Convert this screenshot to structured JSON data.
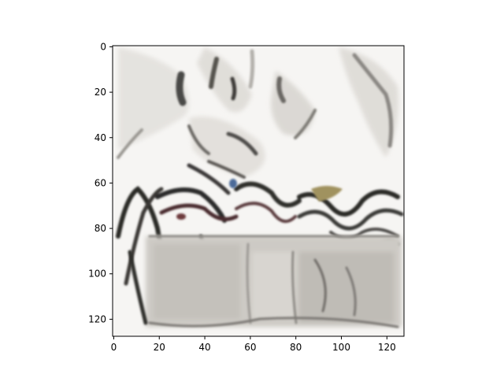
{
  "chart_data": {
    "type": "heatmap",
    "title": "",
    "xlabel": "",
    "ylabel": "",
    "xlim": [
      -0.5,
      127.5
    ],
    "ylim": [
      127.5,
      -0.5
    ],
    "y_inverted": true,
    "grid": false,
    "legend": "none",
    "x_ticks": [
      0,
      20,
      40,
      60,
      80,
      100,
      120
    ],
    "y_ticks": [
      0,
      20,
      40,
      60,
      80,
      100,
      120
    ],
    "image_size": [
      128,
      128
    ],
    "content": "generated 128x128 image: mostly white/grey sketch-like textures on top, dark wavy strokes around rows 60-90, light grey box-like region in lower half"
  },
  "colors": {
    "axis": "#000000",
    "background": "#ffffff",
    "image_light": "#f4f3f1",
    "image_mid": "#c9c6c1",
    "image_dark": "#2b2a28"
  }
}
